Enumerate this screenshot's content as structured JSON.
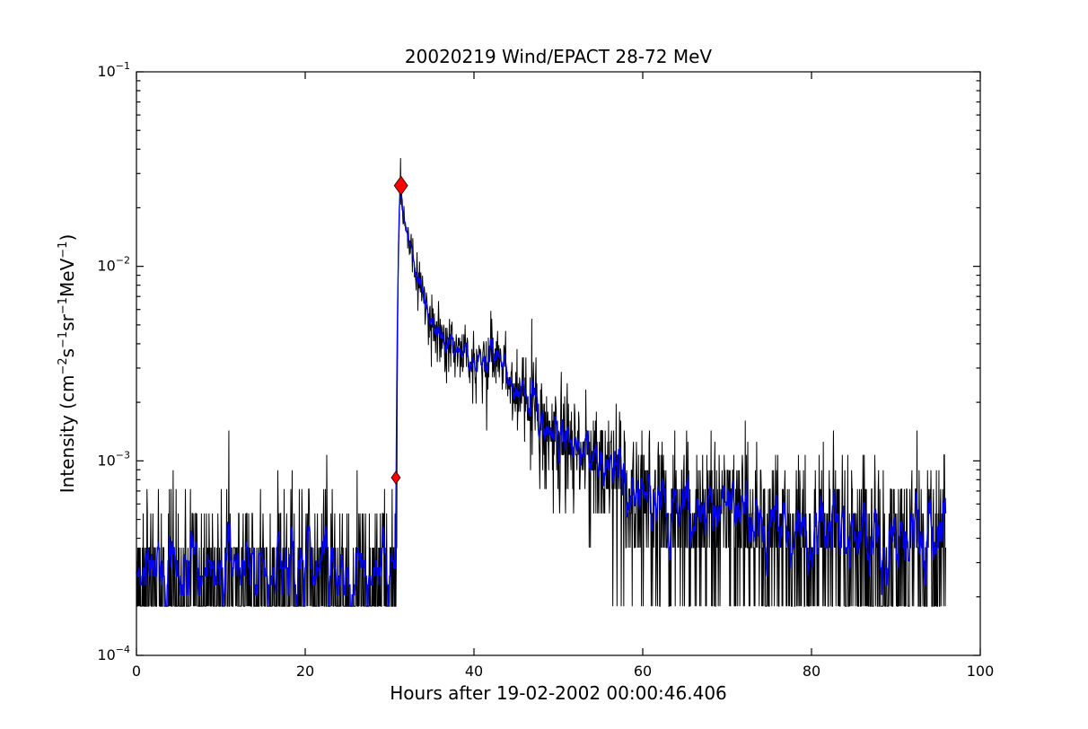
{
  "chart_data": {
    "type": "line",
    "title": "20020219 Wind/EPACT 28-72 MeV",
    "xlabel": "Hours after 19-02-2002 00:00:46.406",
    "ylabel_segments": [
      {
        "text": "Intensity (cm"
      },
      {
        "sup": "−2"
      },
      {
        "text": "s"
      },
      {
        "sup": "−1"
      },
      {
        "text": "sr"
      },
      {
        "sup": "−1"
      },
      {
        "text": "MeV"
      },
      {
        "sup": "−1"
      },
      {
        "text": ")"
      }
    ],
    "xlim": [
      0,
      100
    ],
    "ylim": [
      0.0001,
      0.1
    ],
    "xscale": "linear",
    "yscale": "log",
    "grid": false,
    "legend": null,
    "xticks": [
      0,
      20,
      40,
      60,
      80,
      100
    ],
    "xtick_labels": [
      "0",
      "20",
      "40",
      "60",
      "80",
      "100"
    ],
    "ytick_exponents": [
      -1,
      -2,
      -3,
      -4
    ],
    "ytick_base": "10",
    "series": [
      {
        "name": "raw intensity 28-72 MeV",
        "color": "#000000",
        "style": "noisy-counts"
      },
      {
        "name": "smoothed intensity",
        "color": "#0000ff",
        "style": "running-average"
      }
    ],
    "markers": [
      {
        "name": "event-onset",
        "shape": "diamond",
        "color": "#ff0000",
        "hour": 30.74,
        "intensity": 0.00082,
        "size": "small"
      },
      {
        "name": "event-peak",
        "shape": "diamond",
        "color": "#ff0000",
        "hour": 31.35,
        "intensity": 0.026,
        "size": "large"
      }
    ],
    "time_range_hours": [
      0,
      95.9
    ],
    "background_intensity": 0.000235,
    "count_quantum_intensity": 0.000179,
    "peak_spike": {
      "hour": 31.3,
      "intensity": 0.036
    },
    "profile_anchors_hour_intensity": [
      [
        30.7,
        0.00027
      ],
      [
        30.85,
        0.00082
      ],
      [
        31.0,
        0.01
      ],
      [
        31.2,
        0.022
      ],
      [
        31.7,
        0.0175
      ],
      [
        32.0,
        0.015
      ],
      [
        33.0,
        0.01
      ],
      [
        34.0,
        0.007
      ],
      [
        35.0,
        0.0053
      ],
      [
        36.0,
        0.0045
      ],
      [
        37.0,
        0.0039
      ],
      [
        38.0,
        0.0036
      ],
      [
        39.0,
        0.0034
      ],
      [
        40.0,
        0.00305
      ],
      [
        41.0,
        0.0033
      ],
      [
        42.0,
        0.00375
      ],
      [
        43.0,
        0.0034
      ],
      [
        44.0,
        0.0028
      ],
      [
        45.0,
        0.0024
      ],
      [
        46.0,
        0.00215
      ],
      [
        48.0,
        0.00175
      ],
      [
        50.0,
        0.00145
      ],
      [
        52.0,
        0.00125
      ],
      [
        55.0,
        0.00105
      ],
      [
        57.0,
        0.00086
      ],
      [
        60.0,
        0.0007
      ],
      [
        63.0,
        0.00062
      ],
      [
        66.0,
        0.00057
      ],
      [
        70.0,
        0.00052
      ],
      [
        75.0,
        0.00047
      ],
      [
        80.0,
        0.00043
      ],
      [
        85.0,
        0.00039
      ],
      [
        90.0,
        0.00035
      ],
      [
        96.0,
        0.00037
      ]
    ],
    "sampling": {
      "dt_hours": 0.05,
      "seed": 42,
      "smooth_window": 7
    }
  }
}
